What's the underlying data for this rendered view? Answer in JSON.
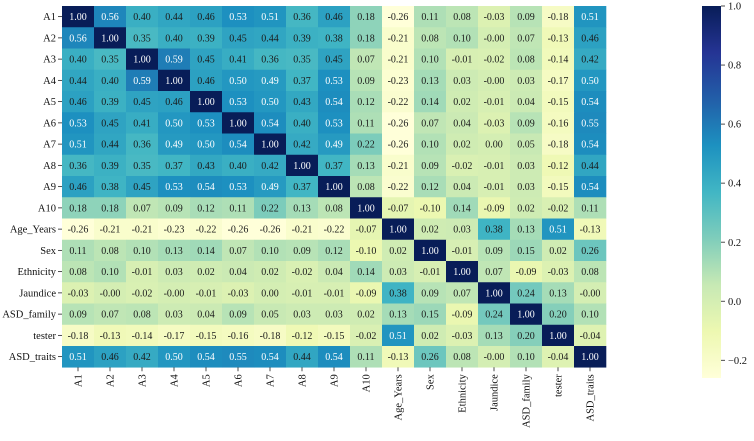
{
  "chart_data": {
    "type": "heatmap",
    "title": "",
    "xlabel": "",
    "ylabel": "",
    "rows": [
      "A1",
      "A2",
      "A3",
      "A4",
      "A5",
      "A6",
      "A7",
      "A8",
      "A9",
      "A10",
      "Age_Years",
      "Sex",
      "Ethnicity",
      "Jaundice",
      "ASD_family",
      "tester",
      "ASD_traits"
    ],
    "cols": [
      "A1",
      "A2",
      "A3",
      "A4",
      "A5",
      "A6",
      "A7",
      "A8",
      "A9",
      "A10",
      "Age_Years",
      "Sex",
      "Ethnicity",
      "Jaundice",
      "ASD_family",
      "tester",
      "ASD_traits"
    ],
    "cell_labels": [
      [
        "1.00",
        "0.56",
        "0.40",
        "0.44",
        "0.46",
        "0.53",
        "0.51",
        "0.36",
        "0.46",
        "0.18",
        "-0.26",
        "0.11",
        "0.08",
        "-0.03",
        "0.09",
        "-0.18",
        "0.51"
      ],
      [
        "0.56",
        "1.00",
        "0.35",
        "0.40",
        "0.39",
        "0.45",
        "0.44",
        "0.39",
        "0.38",
        "0.18",
        "-0.21",
        "0.08",
        "0.10",
        "-0.00",
        "0.07",
        "-0.13",
        "0.46"
      ],
      [
        "0.40",
        "0.35",
        "1.00",
        "0.59",
        "0.45",
        "0.41",
        "0.36",
        "0.35",
        "0.45",
        "0.07",
        "-0.21",
        "0.10",
        "-0.01",
        "-0.02",
        "0.08",
        "-0.14",
        "0.42"
      ],
      [
        "0.44",
        "0.40",
        "0.59",
        "1.00",
        "0.46",
        "0.50",
        "0.49",
        "0.37",
        "0.53",
        "0.09",
        "-0.23",
        "0.13",
        "0.03",
        "-0.00",
        "0.03",
        "-0.17",
        "0.50"
      ],
      [
        "0.46",
        "0.39",
        "0.45",
        "0.46",
        "1.00",
        "0.53",
        "0.50",
        "0.43",
        "0.54",
        "0.12",
        "-0.22",
        "0.14",
        "0.02",
        "-0.01",
        "0.04",
        "-0.15",
        "0.54"
      ],
      [
        "0.53",
        "0.45",
        "0.41",
        "0.50",
        "0.53",
        "1.00",
        "0.54",
        "0.40",
        "0.53",
        "0.11",
        "-0.26",
        "0.07",
        "0.04",
        "-0.03",
        "0.09",
        "-0.16",
        "0.55"
      ],
      [
        "0.51",
        "0.44",
        "0.36",
        "0.49",
        "0.50",
        "0.54",
        "1.00",
        "0.42",
        "0.49",
        "0.22",
        "-0.26",
        "0.10",
        "0.02",
        "0.00",
        "0.05",
        "-0.18",
        "0.54"
      ],
      [
        "0.36",
        "0.39",
        "0.35",
        "0.37",
        "0.43",
        "0.40",
        "0.42",
        "1.00",
        "0.37",
        "0.13",
        "-0.21",
        "0.09",
        "-0.02",
        "-0.01",
        "0.03",
        "-0.12",
        "0.44"
      ],
      [
        "0.46",
        "0.38",
        "0.45",
        "0.53",
        "0.54",
        "0.53",
        "0.49",
        "0.37",
        "1.00",
        "0.08",
        "-0.22",
        "0.12",
        "0.04",
        "-0.01",
        "0.03",
        "-0.15",
        "0.54"
      ],
      [
        "0.18",
        "0.18",
        "0.07",
        "0.09",
        "0.12",
        "0.11",
        "0.22",
        "0.13",
        "0.08",
        "1.00",
        "-0.07",
        "-0.10",
        "0.14",
        "-0.09",
        "0.02",
        "-0.02",
        "0.11"
      ],
      [
        "-0.26",
        "-0.21",
        "-0.21",
        "-0.23",
        "-0.22",
        "-0.26",
        "-0.26",
        "-0.21",
        "-0.22",
        "-0.07",
        "1.00",
        "0.02",
        "0.03",
        "0.38",
        "0.13",
        "0.51",
        "-0.13"
      ],
      [
        "0.11",
        "0.08",
        "0.10",
        "0.13",
        "0.14",
        "0.07",
        "0.10",
        "0.09",
        "0.12",
        "-0.10",
        "0.02",
        "1.00",
        "-0.01",
        "0.09",
        "0.15",
        "0.02",
        "0.26"
      ],
      [
        "0.08",
        "0.10",
        "-0.01",
        "0.03",
        "0.02",
        "0.04",
        "0.02",
        "-0.02",
        "0.04",
        "0.14",
        "0.03",
        "-0.01",
        "1.00",
        "0.07",
        "-0.09",
        "-0.03",
        "0.08"
      ],
      [
        "-0.03",
        "-0.00",
        "-0.02",
        "-0.00",
        "-0.01",
        "-0.03",
        "0.00",
        "-0.01",
        "-0.01",
        "-0.09",
        "0.38",
        "0.09",
        "0.07",
        "1.00",
        "0.24",
        "0.13",
        "-0.00"
      ],
      [
        "0.09",
        "0.07",
        "0.08",
        "0.03",
        "0.04",
        "0.09",
        "0.05",
        "0.03",
        "0.03",
        "0.02",
        "0.13",
        "0.15",
        "-0.09",
        "0.24",
        "1.00",
        "0.20",
        "0.10"
      ],
      [
        "-0.18",
        "-0.13",
        "-0.14",
        "-0.17",
        "-0.15",
        "-0.16",
        "-0.18",
        "-0.12",
        "-0.15",
        "-0.02",
        "0.51",
        "0.02",
        "-0.03",
        "0.13",
        "0.20",
        "1.00",
        "-0.04"
      ],
      [
        "0.51",
        "0.46",
        "0.42",
        "0.50",
        "0.54",
        "0.55",
        "0.54",
        "0.44",
        "0.54",
        "0.11",
        "-0.13",
        "0.26",
        "0.08",
        "-0.00",
        "0.10",
        "-0.04",
        "1.00"
      ]
    ],
    "colorbar": {
      "vmin": -0.26,
      "vmax": 1.0,
      "ticks": [
        1.0,
        0.8,
        0.6,
        0.4,
        0.2,
        0.0,
        -0.2
      ],
      "tick_labels": [
        "1.0",
        "0.8",
        "0.6",
        "0.4",
        "0.2",
        "0.0",
        "−0.2"
      ],
      "colormap": "YlGnBu",
      "colormap_stops": [
        "#ffffd9",
        "#edf8b1",
        "#c7e9b4",
        "#7fcdbb",
        "#41b6c4",
        "#1d91c0",
        "#225ea8",
        "#253494",
        "#081d58"
      ]
    }
  }
}
